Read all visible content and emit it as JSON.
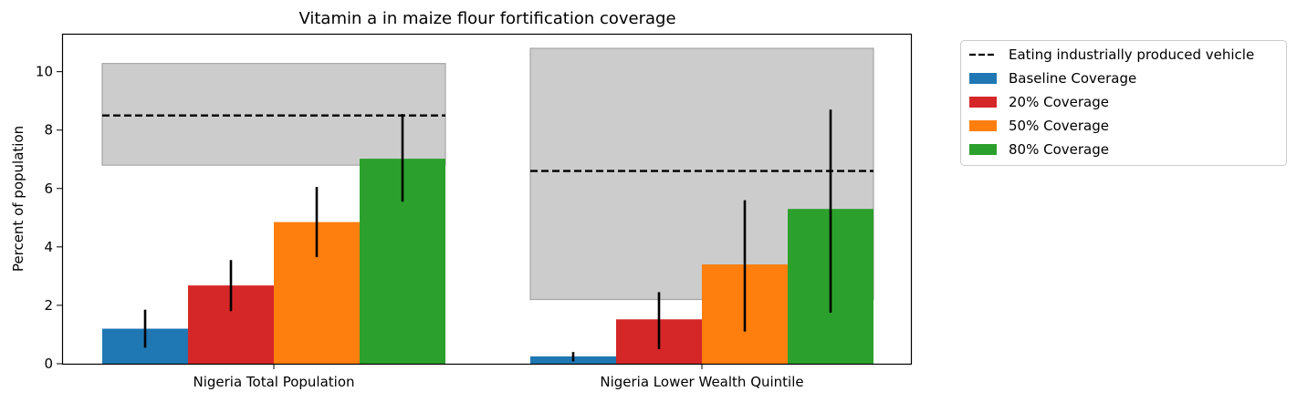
{
  "chart_data": {
    "type": "bar",
    "title": "Vitamin a in maize flour fortification coverage",
    "xlabel": "",
    "ylabel": "Percent of population",
    "ylim": [
      0,
      11.3
    ],
    "yticks": [
      0,
      2,
      4,
      6,
      8,
      10
    ],
    "grid": false,
    "legend_position": "outside-right",
    "categories": [
      "Nigeria Total Population",
      "Nigeria Lower Wealth Quintile"
    ],
    "series": [
      {
        "name": "Baseline Coverage",
        "color": "#1f77b4",
        "values": [
          1.2,
          0.25
        ],
        "err_low": [
          0.55,
          0.08
        ],
        "err_high": [
          1.85,
          0.4
        ]
      },
      {
        "name": "20% Coverage",
        "color": "#d62728",
        "values": [
          2.68,
          1.52
        ],
        "err_low": [
          1.8,
          0.5
        ],
        "err_high": [
          3.55,
          2.45
        ]
      },
      {
        "name": "50% Coverage",
        "color": "#ff7f0e",
        "values": [
          4.85,
          3.4
        ],
        "err_low": [
          3.65,
          1.1
        ],
        "err_high": [
          6.05,
          5.6
        ]
      },
      {
        "name": "80% Coverage",
        "color": "#2ca02c",
        "values": [
          7.02,
          5.3
        ],
        "err_low": [
          5.55,
          1.75
        ],
        "err_high": [
          8.55,
          8.7
        ]
      }
    ],
    "reference": {
      "name": "Eating industrially produced vehicle",
      "style": "dashed",
      "color": "#000000",
      "values": [
        8.5,
        6.6
      ],
      "band_low": [
        6.8,
        2.2
      ],
      "band_high": [
        10.28,
        10.8
      ],
      "band_color": "#cccccc"
    }
  }
}
